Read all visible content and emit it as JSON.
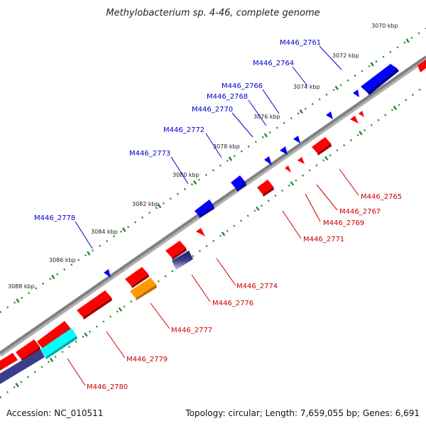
{
  "title": "Methylobacterium sp. 4-46, complete genome",
  "footer": {
    "accession": "Accession: NC_010511",
    "topology": "Topology: circular; Length: 7,659,055 bp; Genes: 6,691"
  },
  "colors": {
    "backbone": "#808080",
    "tick": "#2a8a2a",
    "forward_gene": "#0000ff",
    "reverse_gene": "#ff0000",
    "forward_label": "#0000cc",
    "reverse_label": "#cc0000",
    "orange_feature": "#ff9900",
    "cyan_feature": "#00ffff",
    "navy_feature": "#3b3d8a"
  },
  "kbp_labels": [
    "3070 kbp",
    "3072 kbp",
    "3074 kbp",
    "3076 kbp",
    "3078 kbp",
    "3080 kbp",
    "3082 kbp",
    "3084 kbp",
    "3086 kbp",
    "3088 kbp"
  ],
  "forward_genes": [
    "M446_2761",
    "M446_2764",
    "M446_2766",
    "M446_2768",
    "M446_2770",
    "M446_2772",
    "M446_2773",
    "M446_2778"
  ],
  "reverse_genes": [
    "M446_2765",
    "M446_2767",
    "M446_2769",
    "M446_2771",
    "M446_2774",
    "M446_2776",
    "M446_2777",
    "M446_2779",
    "M446_2780"
  ]
}
